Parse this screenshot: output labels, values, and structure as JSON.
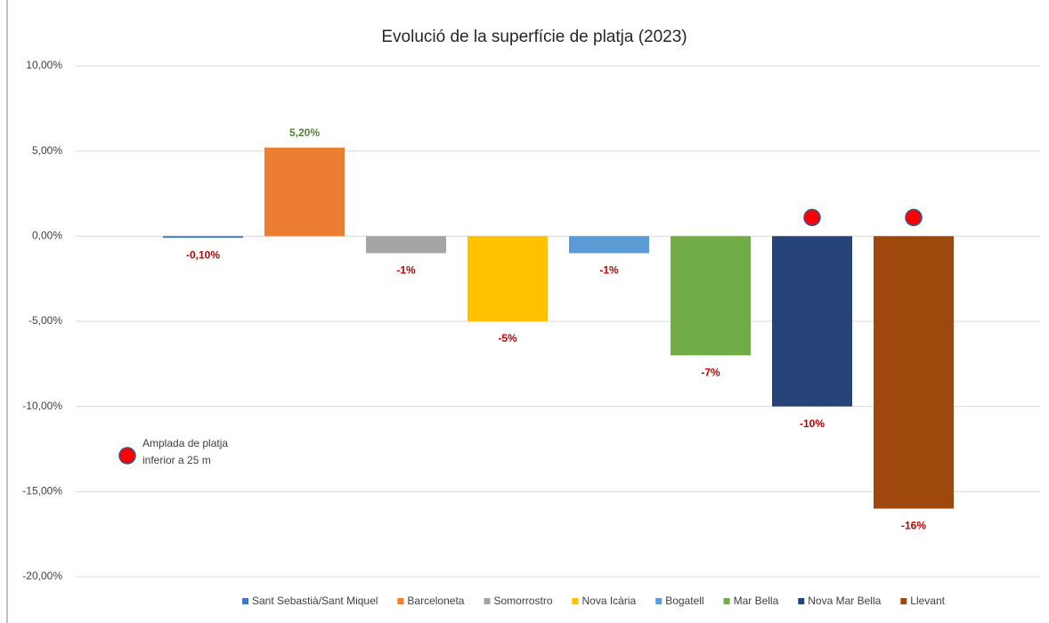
{
  "chart_data": {
    "type": "bar",
    "title": "Evolució de la superfície de platja (2023)",
    "categories": [
      "Sant Sebastià/Sant Miquel",
      "Barceloneta",
      "Somorrostro",
      "Nova Icària",
      "Bogatell",
      "Mar Bella",
      "Nova Mar Bella",
      "Llevant"
    ],
    "values": [
      -0.1,
      5.2,
      -1,
      -5,
      -1,
      -7,
      -10,
      -16
    ],
    "value_labels": [
      "-0,10%",
      "5,20%",
      "-1%",
      "-5%",
      "-1%",
      "-7%",
      "-10%",
      "-16%"
    ],
    "colors": [
      "#4472c4",
      "#ed7d31",
      "#a5a5a5",
      "#ffc000",
      "#5b9bd5",
      "#70ad47",
      "#264478",
      "#9e480e"
    ],
    "label_colors": {
      "negative": "#c00000",
      "positive": "#548235"
    },
    "ylim": [
      -20,
      10
    ],
    "yticks": [
      {
        "value": -20,
        "label": "-20,00%"
      },
      {
        "value": -15,
        "label": "-15,00%"
      },
      {
        "value": -10,
        "label": "-10,00%"
      },
      {
        "value": -5,
        "label": "-5,00%"
      },
      {
        "value": 0,
        "label": "0,00%"
      },
      {
        "value": 5,
        "label": "5,00%"
      },
      {
        "value": 10,
        "label": "10,00%"
      }
    ],
    "grid": true,
    "legend": "bottom",
    "flagged": [
      false,
      false,
      false,
      false,
      false,
      false,
      true,
      true
    ],
    "flag_color": "#ff0000",
    "flag_annotation": [
      "Amplada de platja",
      "inferior a 25 m"
    ]
  }
}
